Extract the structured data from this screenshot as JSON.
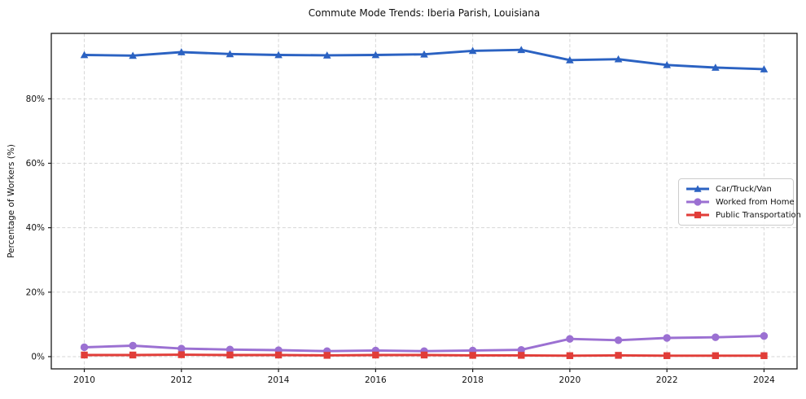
{
  "title": "Commute Mode Trends: Iberia Parish, Louisiana",
  "chart_data": {
    "type": "line",
    "title": "Commute Mode Trends: Iberia Parish, Louisiana",
    "xlabel": "",
    "ylabel": "Percentage of Workers (%)",
    "x": [
      2010,
      2011,
      2012,
      2013,
      2014,
      2015,
      2016,
      2017,
      2018,
      2019,
      2020,
      2021,
      2022,
      2023,
      2024
    ],
    "series": [
      {
        "name": "Car/Truck/Van",
        "color": "#2b62c2",
        "marker": "triangle",
        "values": [
          93.6,
          93.4,
          94.5,
          93.9,
          93.6,
          93.5,
          93.6,
          93.8,
          94.9,
          95.2,
          92.0,
          92.3,
          90.5,
          89.7,
          89.2
        ]
      },
      {
        "name": "Worked from Home",
        "color": "#9b70d2",
        "marker": "circle",
        "values": [
          2.9,
          3.4,
          2.5,
          2.2,
          2.0,
          1.7,
          1.9,
          1.7,
          1.9,
          2.1,
          5.5,
          5.1,
          5.8,
          6.0,
          6.4
        ]
      },
      {
        "name": "Public Transportation",
        "color": "#e13d38",
        "marker": "square",
        "values": [
          0.5,
          0.5,
          0.6,
          0.5,
          0.5,
          0.4,
          0.5,
          0.5,
          0.4,
          0.4,
          0.3,
          0.4,
          0.3,
          0.3,
          0.3
        ]
      }
    ],
    "x_ticks": [
      2010,
      2012,
      2014,
      2016,
      2018,
      2020,
      2022,
      2024
    ],
    "x_tick_labels": [
      "2010",
      "2012",
      "2014",
      "2016",
      "2018",
      "2020",
      "2022",
      "2024"
    ],
    "y_ticks": [
      0,
      20,
      40,
      60,
      80
    ],
    "y_tick_labels": [
      "0%",
      "20%",
      "40%",
      "60%",
      "80%"
    ],
    "xlim": [
      2009.32,
      2024.68
    ],
    "ylim": [
      -3.8,
      100.3
    ],
    "grid": true,
    "grid_color": "#d6d6d6",
    "axis_border_color": "#1a1a1a",
    "legend_position": "center-right"
  }
}
